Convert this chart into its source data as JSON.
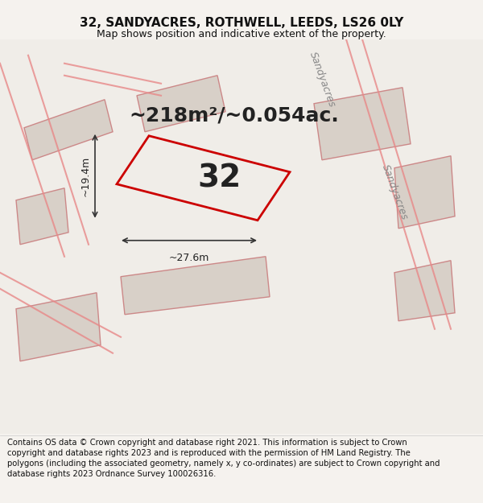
{
  "title_line1": "32, SANDYACRES, ROTHWELL, LEEDS, LS26 0LY",
  "title_line2": "Map shows position and indicative extent of the property.",
  "area_text": "~218m²/~0.054ac.",
  "number_label": "32",
  "dim_width": "~27.6m",
  "dim_height": "~19.4m",
  "footer_text": "Contains OS data © Crown copyright and database right 2021. This information is subject to Crown copyright and database rights 2023 and is reproduced with the permission of HM Land Registry. The polygons (including the associated geometry, namely x, y co-ordinates) are subject to Crown copyright and database rights 2023 Ordnance Survey 100026316.",
  "bg_color": "#f0ede8",
  "map_bg": "#f5f2ee",
  "plot_outline_color": "#cc0000",
  "neighbor_color": "#d4c8c0",
  "neighbor_edge": "#cc6666",
  "road_label1": "Sandyacres",
  "road_label2": "Sandyacres",
  "title_fontsize": 11,
  "subtitle_fontsize": 9,
  "footer_fontsize": 7.2,
  "area_fontsize": 18,
  "number_fontsize": 28
}
